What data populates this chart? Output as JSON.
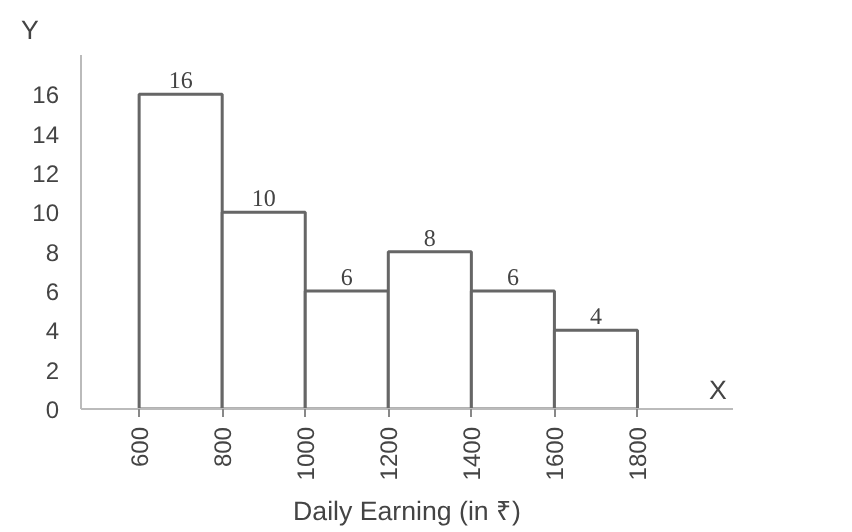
{
  "chart_data": {
    "type": "histogram",
    "xlabel": "Daily Earning (in ₹)",
    "ylabel": "Y",
    "annotations": [
      "X"
    ],
    "bins": [
      600,
      800,
      1000,
      1200,
      1400,
      1600,
      1800
    ],
    "values": [
      16,
      10,
      6,
      8,
      6,
      4
    ],
    "color": "#ffffff",
    "xlim": [
      460,
      2030
    ],
    "xticks": [
      600,
      800,
      1000,
      1200,
      1400,
      1600,
      1800
    ],
    "ylim": [
      0,
      18
    ],
    "yticks": [
      0,
      2,
      4,
      6,
      8,
      10,
      12,
      14,
      16
    ],
    "data_labels": true,
    "grid": false
  }
}
